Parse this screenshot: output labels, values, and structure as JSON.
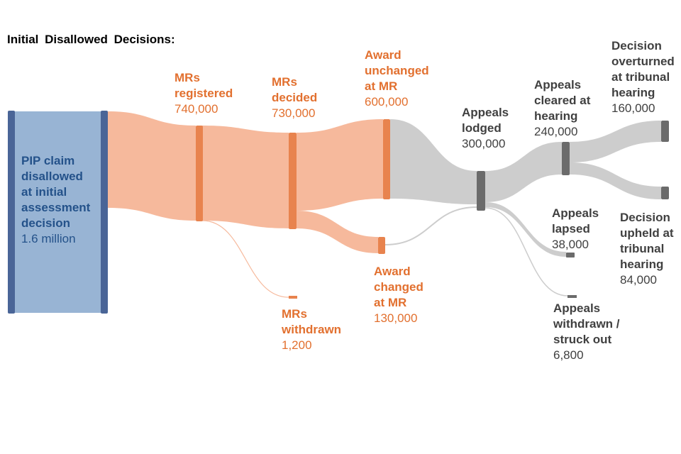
{
  "title": "Initial Disallowed Decisions:",
  "colors": {
    "blue_node": "#4a6597",
    "blue_fill": "#98b4d4",
    "orange_node": "#e8834e",
    "orange_flow": "#f6b99c",
    "gray_node": "#6b6b6b",
    "gray_flow": "#cdcdcd"
  },
  "nodes": {
    "pip": {
      "label": "PIP claim\ndisallowed\nat initial\nassessment\ndecision",
      "value": "1.6 million"
    },
    "mrs_registered": {
      "label": "MRs\nregistered",
      "value": "740,000"
    },
    "mrs_decided": {
      "label": "MRs\ndecided",
      "value": "730,000"
    },
    "mrs_withdrawn": {
      "label": "MRs\nwithdrawn",
      "value": "1,200"
    },
    "award_unchanged": {
      "label": "Award\nunchanged\nat MR",
      "value": "600,000"
    },
    "award_changed": {
      "label": "Award\nchanged\nat MR",
      "value": "130,000"
    },
    "appeals_lodged": {
      "label": "Appeals\nlodged",
      "value": "300,000"
    },
    "appeals_cleared": {
      "label": "Appeals\ncleared at\nhearing",
      "value": "240,000"
    },
    "appeals_lapsed": {
      "label": "Appeals\nlapsed",
      "value": "38,000"
    },
    "appeals_withdrawn": {
      "label": "Appeals\nwithdrawn /\nstruck out",
      "value": "6,800"
    },
    "decision_overturned": {
      "label": "Decision\noverturned\nat tribunal\nhearing",
      "value": "160,000"
    },
    "decision_upheld": {
      "label": "Decision\nupheld at\ntribunal\nhearing",
      "value": "84,000"
    }
  }
}
